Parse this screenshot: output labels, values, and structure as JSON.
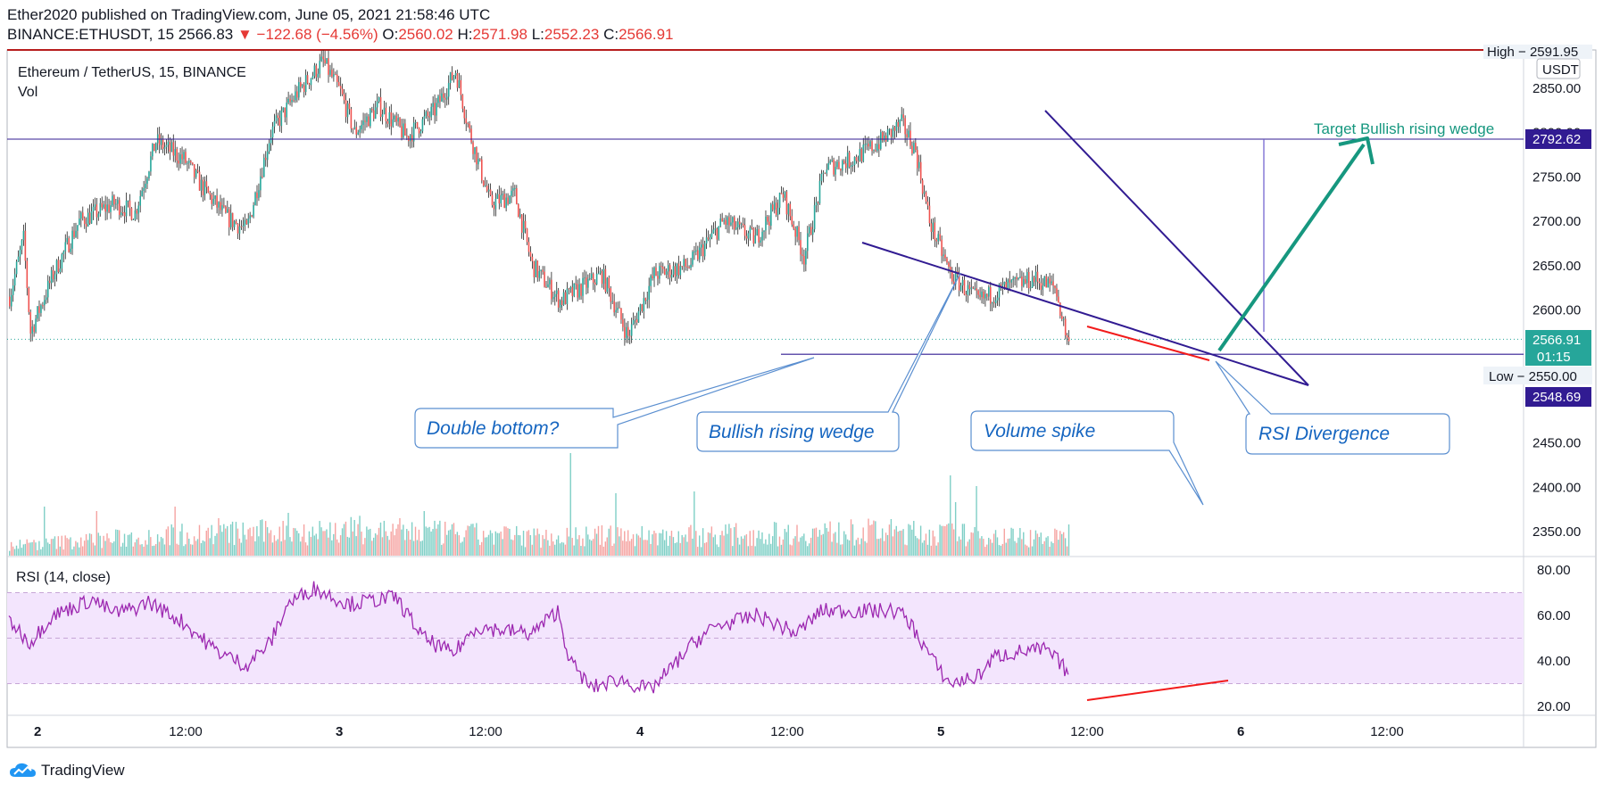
{
  "header": {
    "line1": "Ether2020 published on TradingView.com, June 05, 2021 21:58:46 UTC",
    "symbol": "BINANCE:ETHUSDT, 15",
    "last": "2566.83",
    "change": "▼ −122.68 (−4.56%)",
    "o_label": "O:",
    "o_val": "2560.02",
    "h_label": "H:",
    "h_val": "2571.98",
    "l_label": "L:",
    "l_val": "2552.23",
    "c_label": "C:",
    "c_val": "2566.91"
  },
  "legend": {
    "title": "Ethereum / TetherUS, 15, BINANCE",
    "vol": "Vol",
    "rsi": "RSI (14, close)"
  },
  "price_axis": {
    "unit": "USDT",
    "high_tag": "High − 2591.95",
    "low_tag_text": "Low − 2550.00",
    "tag_2792": "2792.62",
    "tag_last": "2566.91",
    "tag_countdown": "01:15",
    "tag_2548": "2548.69"
  },
  "annotations": {
    "target": "Target Bullish rising wedge",
    "double_bottom": "Double bottom?",
    "wedge": "Bullish rising wedge",
    "volume_spike": "Volume spike",
    "rsi_divergence": "RSI Divergence"
  },
  "footer": {
    "brand": "TradingView"
  },
  "colors": {
    "up": "#26a69a",
    "down": "#ef5350",
    "wedge": "#311b92",
    "target_arrow": "#16977f",
    "rsi_line": "#9c27b0",
    "rsi_band": "#f3e5fd",
    "callout_text": "#1565c0",
    "callout_border": "#5b8fd0",
    "divergence": "#f21b1b"
  },
  "chart_data": [
    {
      "type": "candlestick",
      "title": "Ethereum / TetherUS, 15, BINANCE",
      "x_ticks": [
        "2",
        "12:00",
        "3",
        "12:00",
        "4",
        "12:00",
        "5",
        "12:00",
        "6",
        "12:00"
      ],
      "y_ticks": [
        2350,
        2400,
        2450,
        2500,
        2550,
        2600,
        2650,
        2700,
        2750,
        2800,
        2850
      ],
      "y_tick_labels": [
        "2350.00",
        "2400.00",
        "2450.00",
        "2500.00",
        "2550.00",
        "2600.00",
        "2650.00",
        "2700.00",
        "2750.00",
        "2800.00",
        "2850.00"
      ],
      "ylim": [
        2310,
        2900
      ],
      "anchors": [
        [
          0,
          2615
        ],
        [
          8,
          2680
        ],
        [
          12,
          2575
        ],
        [
          25,
          2640
        ],
        [
          40,
          2700
        ],
        [
          60,
          2720
        ],
        [
          72,
          2710
        ],
        [
          84,
          2790
        ],
        [
          100,
          2770
        ],
        [
          110,
          2740
        ],
        [
          124,
          2705
        ],
        [
          136,
          2690
        ],
        [
          150,
          2800
        ],
        [
          165,
          2845
        ],
        [
          180,
          2880
        ],
        [
          190,
          2845
        ],
        [
          198,
          2800
        ],
        [
          212,
          2830
        ],
        [
          228,
          2795
        ],
        [
          244,
          2825
        ],
        [
          256,
          2870
        ],
        [
          264,
          2800
        ],
        [
          276,
          2720
        ],
        [
          290,
          2730
        ],
        [
          300,
          2650
        ],
        [
          316,
          2610
        ],
        [
          340,
          2640
        ],
        [
          355,
          2570
        ],
        [
          370,
          2640
        ],
        [
          390,
          2650
        ],
        [
          410,
          2700
        ],
        [
          428,
          2680
        ],
        [
          444,
          2730
        ],
        [
          456,
          2660
        ],
        [
          468,
          2760
        ],
        [
          484,
          2770
        ],
        [
          500,
          2790
        ],
        [
          512,
          2810
        ],
        [
          520,
          2780
        ],
        [
          528,
          2700
        ],
        [
          540,
          2640
        ],
        [
          556,
          2610
        ],
        [
          572,
          2625
        ],
        [
          588,
          2635
        ],
        [
          600,
          2625
        ],
        [
          608,
          2560
        ]
      ],
      "levels": {
        "resistance": 2792.62,
        "support": 2550.0,
        "last": 2566.91
      }
    },
    {
      "type": "bar",
      "name": "Vol",
      "anchors": [
        [
          0,
          12
        ],
        [
          100,
          25
        ],
        [
          200,
          30
        ],
        [
          300,
          22
        ],
        [
          400,
          24
        ],
        [
          500,
          28
        ],
        [
          608,
          20
        ]
      ],
      "spikes": [
        [
          20,
          55
        ],
        [
          50,
          50
        ],
        [
          95,
          55
        ],
        [
          120,
          42
        ],
        [
          160,
          48
        ],
        [
          238,
          50
        ],
        [
          322,
          115
        ],
        [
          348,
          70
        ],
        [
          393,
          72
        ],
        [
          540,
          90
        ],
        [
          543,
          60
        ],
        [
          555,
          78
        ],
        [
          608,
          35
        ]
      ]
    },
    {
      "type": "line",
      "name": "RSI (14, close)",
      "y_ticks": [
        20,
        40,
        60,
        80
      ],
      "y_tick_labels": [
        "20.00",
        "40.00",
        "60.00",
        "80.00"
      ],
      "band": [
        30,
        70
      ],
      "ylim": [
        17,
        85
      ],
      "anchors": [
        [
          0,
          58
        ],
        [
          12,
          48
        ],
        [
          25,
          60
        ],
        [
          48,
          67
        ],
        [
          60,
          61
        ],
        [
          72,
          63
        ],
        [
          80,
          66
        ],
        [
          100,
          57
        ],
        [
          118,
          45
        ],
        [
          136,
          38
        ],
        [
          150,
          48
        ],
        [
          160,
          65
        ],
        [
          175,
          72
        ],
        [
          195,
          65
        ],
        [
          222,
          68
        ],
        [
          238,
          50
        ],
        [
          255,
          43
        ],
        [
          268,
          55
        ],
        [
          300,
          52
        ],
        [
          315,
          62
        ],
        [
          322,
          40
        ],
        [
          334,
          28
        ],
        [
          350,
          32
        ],
        [
          368,
          27
        ],
        [
          378,
          35
        ],
        [
          393,
          48
        ],
        [
          405,
          55
        ],
        [
          430,
          60
        ],
        [
          452,
          52
        ],
        [
          466,
          62
        ],
        [
          500,
          62
        ],
        [
          510,
          62
        ],
        [
          516,
          58
        ],
        [
          534,
          36
        ],
        [
          540,
          30
        ],
        [
          556,
          33
        ],
        [
          566,
          42
        ],
        [
          580,
          44
        ],
        [
          595,
          45
        ],
        [
          602,
          40
        ],
        [
          608,
          35
        ]
      ]
    }
  ]
}
